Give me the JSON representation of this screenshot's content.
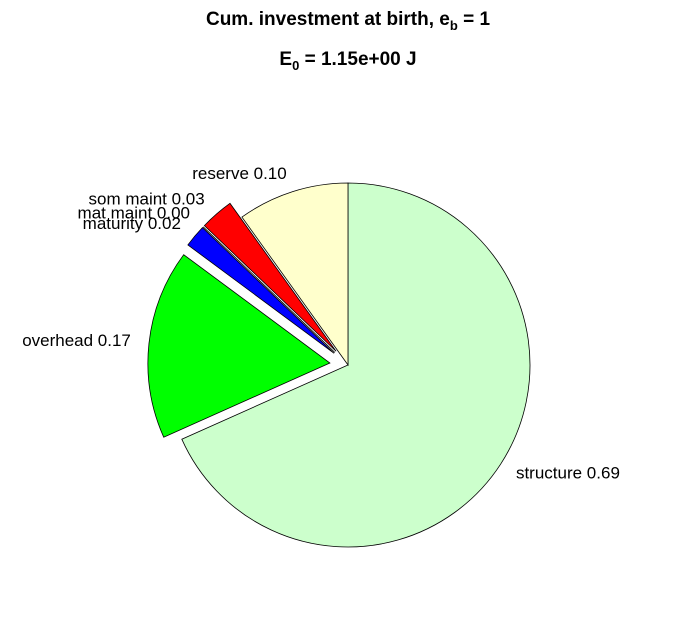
{
  "chart_data": {
    "type": "pie",
    "title": {
      "main": "Cum. investment at birth, e",
      "sub": "b",
      "rest": " = 1"
    },
    "subtitle": {
      "main": "E",
      "sub": "0",
      "rest": " = 1.15e+00 J"
    },
    "categories": [
      "structure",
      "overhead",
      "maturity",
      "mat maint",
      "som maint",
      "reserve"
    ],
    "values": [
      0.69,
      0.17,
      0.02,
      0.0,
      0.03,
      0.1
    ],
    "value_labels": [
      "structure 0.69",
      "overhead 0.17",
      "maturity 0.02",
      "mat maint 0.00",
      "som maint 0.03",
      "reserve 0.10"
    ],
    "colors": [
      "#ccffcc",
      "#00ff00",
      "#0000ff",
      "#ff00ff",
      "#ff0000",
      "#ffffcc"
    ],
    "explode": [
      0,
      1,
      1,
      1,
      1,
      0
    ]
  }
}
